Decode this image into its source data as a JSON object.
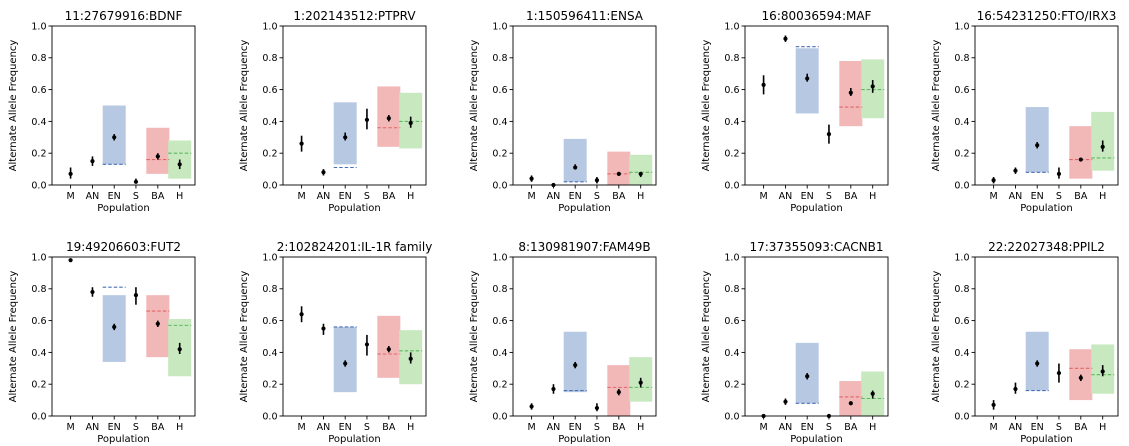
{
  "chart_data": [
    {
      "type": "scatter",
      "title": "11:27679916:BDNF",
      "xlabel": "Population",
      "ylabel": "Alternate Allele Frequency",
      "categories": [
        "M",
        "AN",
        "EN",
        "S",
        "BA",
        "H"
      ],
      "ylim": [
        0,
        1.0
      ],
      "yticks": [
        "0.0",
        "0.2",
        "0.4",
        "0.6",
        "0.8",
        "1.0"
      ],
      "points": [
        {
          "category": "M",
          "value": 0.07,
          "low": 0.04,
          "high": 0.11
        },
        {
          "category": "AN",
          "value": 0.15,
          "low": 0.12,
          "high": 0.18
        },
        {
          "category": "EN",
          "value": 0.3,
          "low": 0.28,
          "high": 0.32
        },
        {
          "category": "S",
          "value": 0.02,
          "low": 0.01,
          "high": 0.04
        },
        {
          "category": "BA",
          "value": 0.18,
          "low": 0.16,
          "high": 0.2
        },
        {
          "category": "H",
          "value": 0.13,
          "low": 0.1,
          "high": 0.16
        }
      ],
      "ranges": [
        {
          "category": "EN",
          "low": 0.13,
          "high": 0.5,
          "expected": 0.13
        },
        {
          "category": "BA",
          "low": 0.07,
          "high": 0.36,
          "expected": 0.16
        },
        {
          "category": "H",
          "low": 0.04,
          "high": 0.28,
          "expected": 0.2
        }
      ]
    },
    {
      "type": "scatter",
      "title": "1:202143512:PTPRV",
      "xlabel": "Population",
      "ylabel": "Alternate Allele Frequency",
      "categories": [
        "M",
        "AN",
        "EN",
        "S",
        "BA",
        "H"
      ],
      "ylim": [
        0,
        1.0
      ],
      "yticks": [
        "0.0",
        "0.2",
        "0.4",
        "0.6",
        "0.8",
        "1.0"
      ],
      "points": [
        {
          "category": "M",
          "value": 0.26,
          "low": 0.21,
          "high": 0.31
        },
        {
          "category": "AN",
          "value": 0.08,
          "low": 0.06,
          "high": 0.1
        },
        {
          "category": "EN",
          "value": 0.3,
          "low": 0.28,
          "high": 0.33
        },
        {
          "category": "S",
          "value": 0.41,
          "low": 0.35,
          "high": 0.48
        },
        {
          "category": "BA",
          "value": 0.42,
          "low": 0.4,
          "high": 0.44
        },
        {
          "category": "H",
          "value": 0.39,
          "low": 0.36,
          "high": 0.43
        }
      ],
      "ranges": [
        {
          "category": "EN",
          "low": 0.13,
          "high": 0.52,
          "expected": 0.11
        },
        {
          "category": "BA",
          "low": 0.24,
          "high": 0.62,
          "expected": 0.36
        },
        {
          "category": "H",
          "low": 0.23,
          "high": 0.58,
          "expected": 0.4
        }
      ]
    },
    {
      "type": "scatter",
      "title": "1:150596411:ENSA",
      "xlabel": "Population",
      "ylabel": "Alternate Allele Frequency",
      "categories": [
        "M",
        "AN",
        "EN",
        "S",
        "BA",
        "H"
      ],
      "ylim": [
        0,
        1.0
      ],
      "yticks": [
        "0.0",
        "0.2",
        "0.4",
        "0.6",
        "0.8",
        "1.0"
      ],
      "points": [
        {
          "category": "M",
          "value": 0.04,
          "low": 0.02,
          "high": 0.06
        },
        {
          "category": "AN",
          "value": 0.0,
          "low": 0.0,
          "high": 0.01
        },
        {
          "category": "EN",
          "value": 0.11,
          "low": 0.1,
          "high": 0.13
        },
        {
          "category": "S",
          "value": 0.03,
          "low": 0.01,
          "high": 0.05
        },
        {
          "category": "BA",
          "value": 0.07,
          "low": 0.065,
          "high": 0.075
        },
        {
          "category": "H",
          "value": 0.07,
          "low": 0.05,
          "high": 0.08
        }
      ],
      "ranges": [
        {
          "category": "EN",
          "low": 0.02,
          "high": 0.29,
          "expected": 0.02
        },
        {
          "category": "BA",
          "low": 0.0,
          "high": 0.21,
          "expected": 0.07
        },
        {
          "category": "H",
          "low": 0.0,
          "high": 0.19,
          "expected": 0.08
        }
      ]
    },
    {
      "type": "scatter",
      "title": "16:80036594:MAF",
      "xlabel": "Population",
      "ylabel": "Alternate Allele Frequency",
      "categories": [
        "M",
        "AN",
        "EN",
        "S",
        "BA",
        "H"
      ],
      "ylim": [
        0,
        1.0
      ],
      "yticks": [
        "0.0",
        "0.2",
        "0.4",
        "0.6",
        "0.8",
        "1.0"
      ],
      "points": [
        {
          "category": "M",
          "value": 0.63,
          "low": 0.57,
          "high": 0.69
        },
        {
          "category": "AN",
          "value": 0.92,
          "low": 0.9,
          "high": 0.94
        },
        {
          "category": "EN",
          "value": 0.67,
          "low": 0.65,
          "high": 0.7
        },
        {
          "category": "S",
          "value": 0.32,
          "low": 0.26,
          "high": 0.38
        },
        {
          "category": "BA",
          "value": 0.58,
          "low": 0.56,
          "high": 0.61
        },
        {
          "category": "H",
          "value": 0.62,
          "low": 0.58,
          "high": 0.66
        }
      ],
      "ranges": [
        {
          "category": "EN",
          "low": 0.45,
          "high": 0.86,
          "expected": 0.87
        },
        {
          "category": "BA",
          "low": 0.37,
          "high": 0.78,
          "expected": 0.49
        },
        {
          "category": "H",
          "low": 0.42,
          "high": 0.79,
          "expected": 0.6
        }
      ]
    },
    {
      "type": "scatter",
      "title": "16:54231250:FTO/IRX3",
      "xlabel": "Population",
      "ylabel": "Alternate Allele Frequency",
      "categories": [
        "M",
        "AN",
        "EN",
        "S",
        "BA",
        "H"
      ],
      "ylim": [
        0,
        1.0
      ],
      "yticks": [
        "0.0",
        "0.2",
        "0.4",
        "0.6",
        "0.8",
        "1.0"
      ],
      "points": [
        {
          "category": "M",
          "value": 0.03,
          "low": 0.01,
          "high": 0.05
        },
        {
          "category": "AN",
          "value": 0.09,
          "low": 0.07,
          "high": 0.11
        },
        {
          "category": "EN",
          "value": 0.25,
          "low": 0.23,
          "high": 0.27
        },
        {
          "category": "S",
          "value": 0.07,
          "low": 0.04,
          "high": 0.11
        },
        {
          "category": "BA",
          "value": 0.16,
          "low": 0.15,
          "high": 0.17
        },
        {
          "category": "H",
          "value": 0.24,
          "low": 0.21,
          "high": 0.28
        }
      ],
      "ranges": [
        {
          "category": "EN",
          "low": 0.08,
          "high": 0.49,
          "expected": 0.08
        },
        {
          "category": "BA",
          "low": 0.04,
          "high": 0.37,
          "expected": 0.16
        },
        {
          "category": "H",
          "low": 0.09,
          "high": 0.46,
          "expected": 0.17
        }
      ]
    },
    {
      "type": "scatter",
      "title": "19:49206603:FUT2",
      "xlabel": "Population",
      "ylabel": "Alternate Allele Frequency",
      "categories": [
        "M",
        "AN",
        "EN",
        "S",
        "BA",
        "H"
      ],
      "ylim": [
        0,
        1.0
      ],
      "yticks": [
        "0.0",
        "0.2",
        "0.4",
        "0.6",
        "0.8",
        "1.0"
      ],
      "points": [
        {
          "category": "M",
          "value": 0.98,
          "low": 0.97,
          "high": 0.99
        },
        {
          "category": "AN",
          "value": 0.78,
          "low": 0.75,
          "high": 0.81
        },
        {
          "category": "EN",
          "value": 0.56,
          "low": 0.54,
          "high": 0.58
        },
        {
          "category": "S",
          "value": 0.76,
          "low": 0.7,
          "high": 0.81
        },
        {
          "category": "BA",
          "value": 0.58,
          "low": 0.56,
          "high": 0.6
        },
        {
          "category": "H",
          "value": 0.42,
          "low": 0.39,
          "high": 0.46
        }
      ],
      "ranges": [
        {
          "category": "EN",
          "low": 0.34,
          "high": 0.76,
          "expected": 0.81
        },
        {
          "category": "BA",
          "low": 0.37,
          "high": 0.76,
          "expected": 0.66
        },
        {
          "category": "H",
          "low": 0.25,
          "high": 0.61,
          "expected": 0.57
        }
      ]
    },
    {
      "type": "scatter",
      "title": "2:102824201:IL-1R family",
      "xlabel": "Population",
      "ylabel": "Alternate Allele Frequency",
      "categories": [
        "M",
        "AN",
        "EN",
        "S",
        "BA",
        "H"
      ],
      "ylim": [
        0,
        1.0
      ],
      "yticks": [
        "0.0",
        "0.2",
        "0.4",
        "0.6",
        "0.8",
        "1.0"
      ],
      "points": [
        {
          "category": "M",
          "value": 0.64,
          "low": 0.59,
          "high": 0.69
        },
        {
          "category": "AN",
          "value": 0.55,
          "low": 0.51,
          "high": 0.58
        },
        {
          "category": "EN",
          "value": 0.33,
          "low": 0.31,
          "high": 0.35
        },
        {
          "category": "S",
          "value": 0.45,
          "low": 0.38,
          "high": 0.51
        },
        {
          "category": "BA",
          "value": 0.42,
          "low": 0.4,
          "high": 0.44
        },
        {
          "category": "H",
          "value": 0.36,
          "low": 0.33,
          "high": 0.4
        }
      ],
      "ranges": [
        {
          "category": "EN",
          "low": 0.15,
          "high": 0.56,
          "expected": 0.56
        },
        {
          "category": "BA",
          "low": 0.24,
          "high": 0.63,
          "expected": 0.39
        },
        {
          "category": "H",
          "low": 0.2,
          "high": 0.54,
          "expected": 0.41
        }
      ]
    },
    {
      "type": "scatter",
      "title": "8:130981907:FAM49B",
      "xlabel": "Population",
      "ylabel": "Alternate Allele Frequency",
      "categories": [
        "M",
        "AN",
        "EN",
        "S",
        "BA",
        "H"
      ],
      "ylim": [
        0,
        1.0
      ],
      "yticks": [
        "0.0",
        "0.2",
        "0.4",
        "0.6",
        "0.8",
        "1.0"
      ],
      "points": [
        {
          "category": "M",
          "value": 0.06,
          "low": 0.04,
          "high": 0.08
        },
        {
          "category": "AN",
          "value": 0.17,
          "low": 0.14,
          "high": 0.2
        },
        {
          "category": "EN",
          "value": 0.32,
          "low": 0.3,
          "high": 0.34
        },
        {
          "category": "S",
          "value": 0.05,
          "low": 0.03,
          "high": 0.08
        },
        {
          "category": "BA",
          "value": 0.15,
          "low": 0.13,
          "high": 0.17
        },
        {
          "category": "H",
          "value": 0.21,
          "low": 0.18,
          "high": 0.24
        }
      ],
      "ranges": [
        {
          "category": "EN",
          "low": 0.15,
          "high": 0.53,
          "expected": 0.16
        },
        {
          "category": "BA",
          "low": 0.0,
          "high": 0.32,
          "expected": 0.18
        },
        {
          "category": "H",
          "low": 0.09,
          "high": 0.37,
          "expected": 0.18
        }
      ]
    },
    {
      "type": "scatter",
      "title": "17:37355093:CACNB1",
      "xlabel": "Population",
      "ylabel": "Alternate Allele Frequency",
      "categories": [
        "M",
        "AN",
        "EN",
        "S",
        "BA",
        "H"
      ],
      "ylim": [
        0,
        1.0
      ],
      "yticks": [
        "0.0",
        "0.2",
        "0.4",
        "0.6",
        "0.8",
        "1.0"
      ],
      "points": [
        {
          "category": "M",
          "value": 0.0,
          "low": 0.0,
          "high": 0.01
        },
        {
          "category": "AN",
          "value": 0.09,
          "low": 0.07,
          "high": 0.11
        },
        {
          "category": "EN",
          "value": 0.25,
          "low": 0.23,
          "high": 0.27
        },
        {
          "category": "S",
          "value": 0.0,
          "low": 0.0,
          "high": 0.01
        },
        {
          "category": "BA",
          "value": 0.08,
          "low": 0.07,
          "high": 0.09
        },
        {
          "category": "H",
          "value": 0.14,
          "low": 0.11,
          "high": 0.16
        }
      ],
      "ranges": [
        {
          "category": "EN",
          "low": 0.08,
          "high": 0.46,
          "expected": 0.08
        },
        {
          "category": "BA",
          "low": 0.0,
          "high": 0.22,
          "expected": 0.12
        },
        {
          "category": "H",
          "low": 0.0,
          "high": 0.28,
          "expected": 0.11
        }
      ]
    },
    {
      "type": "scatter",
      "title": "22:22027348:PPIL2",
      "xlabel": "Population",
      "ylabel": "Alternate Allele Frequency",
      "categories": [
        "M",
        "AN",
        "EN",
        "S",
        "BA",
        "H"
      ],
      "ylim": [
        0,
        1.0
      ],
      "yticks": [
        "0.0",
        "0.2",
        "0.4",
        "0.6",
        "0.8",
        "1.0"
      ],
      "points": [
        {
          "category": "M",
          "value": 0.07,
          "low": 0.04,
          "high": 0.1
        },
        {
          "category": "AN",
          "value": 0.17,
          "low": 0.14,
          "high": 0.21
        },
        {
          "category": "EN",
          "value": 0.33,
          "low": 0.31,
          "high": 0.35
        },
        {
          "category": "S",
          "value": 0.27,
          "low": 0.21,
          "high": 0.33
        },
        {
          "category": "BA",
          "value": 0.24,
          "low": 0.22,
          "high": 0.26
        },
        {
          "category": "H",
          "value": 0.28,
          "low": 0.25,
          "high": 0.32
        }
      ],
      "ranges": [
        {
          "category": "EN",
          "low": 0.16,
          "high": 0.53,
          "expected": 0.16
        },
        {
          "category": "BA",
          "low": 0.1,
          "high": 0.42,
          "expected": 0.3
        },
        {
          "category": "H",
          "low": 0.14,
          "high": 0.45,
          "expected": 0.26
        }
      ]
    }
  ],
  "style": {
    "range_colors": {
      "EN": "#b7c9e2",
      "BA": "#f2b8b8",
      "H": "#c8e8c0"
    },
    "expected_colors": {
      "EN": "#4a6fb5",
      "BA": "#e06666",
      "H": "#5fb85f"
    },
    "point_color": "#000000"
  }
}
